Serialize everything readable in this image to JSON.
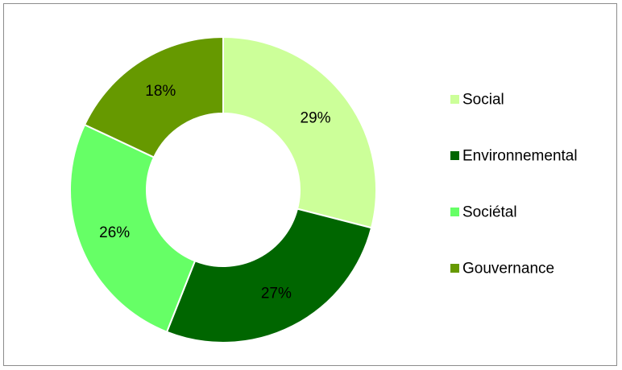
{
  "chart_data": {
    "type": "pie",
    "variant": "donut",
    "categories": [
      "Social",
      "Environnemental",
      "Sociétal",
      "Gouvernance"
    ],
    "values": [
      29,
      27,
      26,
      18
    ],
    "labels": [
      "29%",
      "27%",
      "26%",
      "18%"
    ],
    "colors": [
      "#ccff99",
      "#006600",
      "#66ff66",
      "#669900"
    ],
    "legend_position": "right",
    "title": ""
  }
}
